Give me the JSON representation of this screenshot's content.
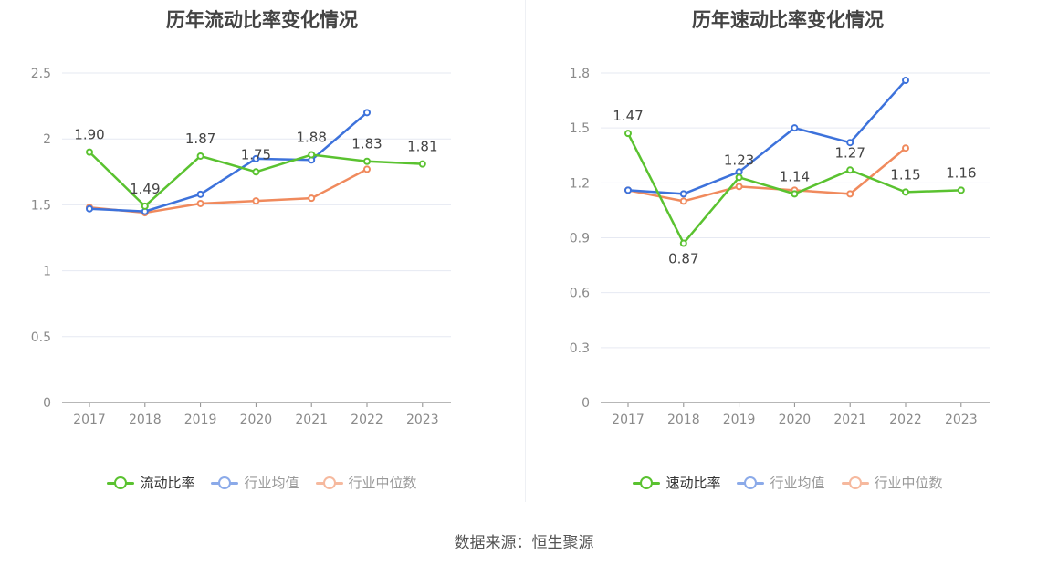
{
  "source_text": "数据来源：恒生聚源",
  "chart_data": [
    {
      "type": "line",
      "title": "历年流动比率变化情况",
      "categories": [
        "2017",
        "2018",
        "2019",
        "2020",
        "2021",
        "2022",
        "2023"
      ],
      "ylim": [
        0,
        2.5
      ],
      "yticks": [
        "0",
        "0.5",
        "1",
        "1.5",
        "2",
        "2.5"
      ],
      "ytick_values": [
        0,
        0.5,
        1,
        1.5,
        2,
        2.5
      ],
      "grid": true,
      "legend_position": "bottom",
      "series": [
        {
          "name": "流动比率",
          "color": "#5ac230",
          "values": [
            1.9,
            1.49,
            1.87,
            1.75,
            1.88,
            1.83,
            1.81
          ],
          "labels": [
            "1.90",
            "1.49",
            "1.87",
            "1.75",
            "1.88",
            "1.83",
            "1.81"
          ]
        },
        {
          "name": "行业均值",
          "color": "#3d72db",
          "values": [
            1.47,
            1.45,
            1.58,
            1.85,
            1.84,
            2.2,
            null
          ]
        },
        {
          "name": "行业中位数",
          "color": "#f08a5d",
          "values": [
            1.48,
            1.44,
            1.51,
            1.53,
            1.55,
            1.77,
            null
          ]
        }
      ]
    },
    {
      "type": "line",
      "title": "历年速动比率变化情况",
      "categories": [
        "2017",
        "2018",
        "2019",
        "2020",
        "2021",
        "2022",
        "2023"
      ],
      "ylim": [
        0,
        1.8
      ],
      "yticks": [
        "0",
        "0.3",
        "0.6",
        "0.9",
        "1.2",
        "1.5",
        "1.8"
      ],
      "ytick_values": [
        0,
        0.3,
        0.6,
        0.9,
        1.2,
        1.5,
        1.8
      ],
      "grid": true,
      "legend_position": "bottom",
      "series": [
        {
          "name": "速动比率",
          "color": "#5ac230",
          "values": [
            1.47,
            0.87,
            1.23,
            1.14,
            1.27,
            1.15,
            1.16
          ],
          "labels": [
            "1.47",
            "0.87",
            "1.23",
            "1.14",
            "1.27",
            "1.15",
            "1.16"
          ]
        },
        {
          "name": "行业均值",
          "color": "#3d72db",
          "values": [
            1.16,
            1.14,
            1.26,
            1.5,
            1.42,
            1.76,
            null
          ]
        },
        {
          "name": "行业中位数",
          "color": "#f08a5d",
          "values": [
            1.16,
            1.1,
            1.18,
            1.16,
            1.14,
            1.39,
            null
          ]
        }
      ]
    }
  ]
}
